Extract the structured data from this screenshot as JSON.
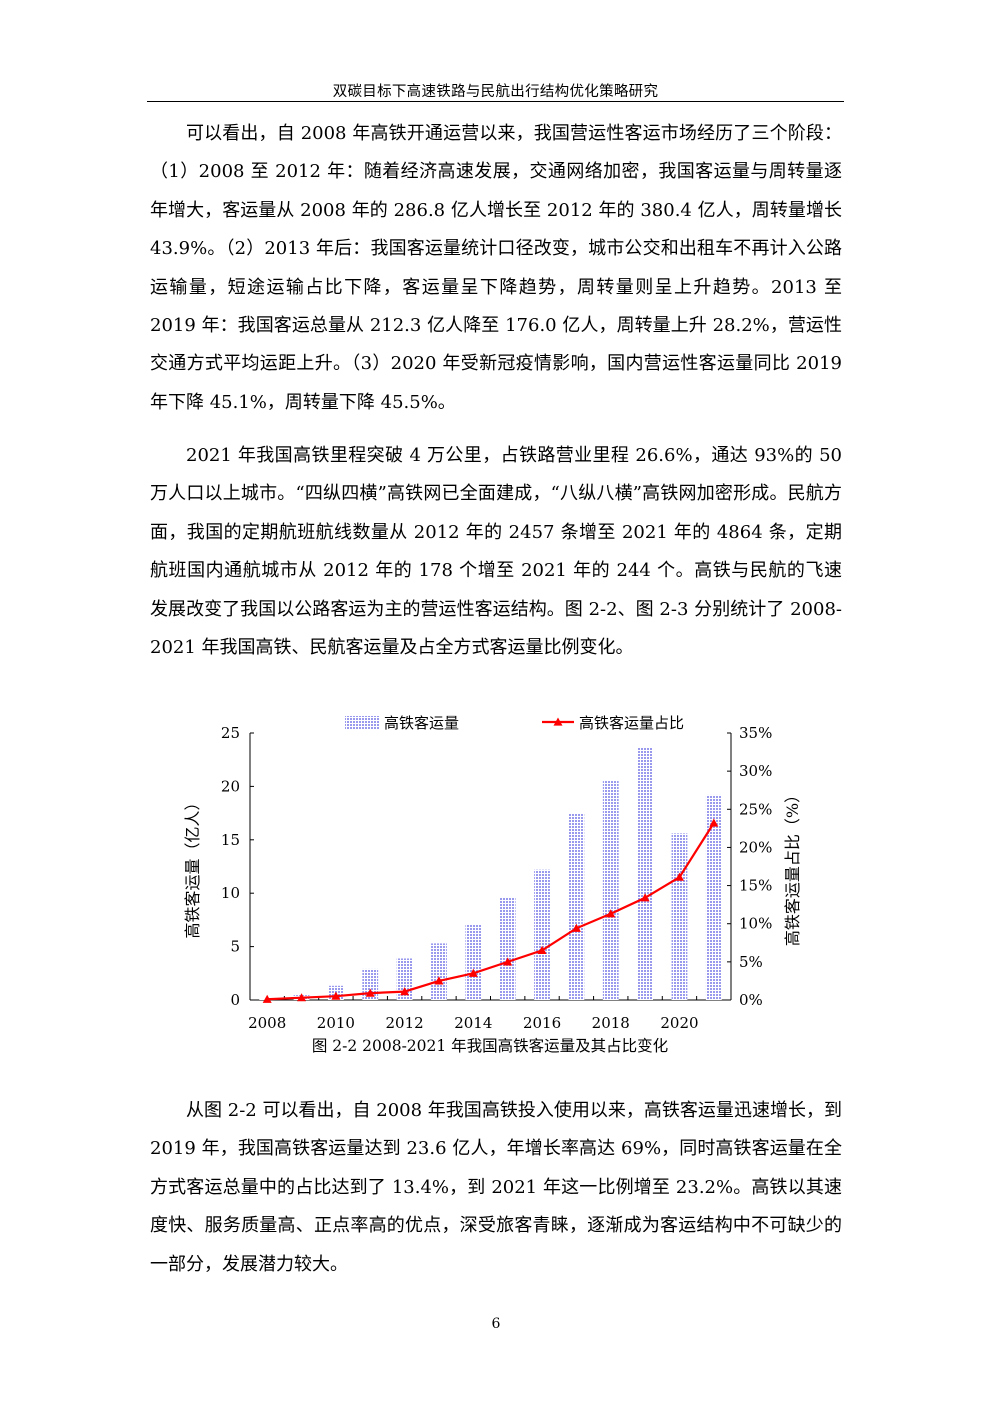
{
  "header": {
    "title": "双碳目标下高速铁路与民航出行结构优化策略研究"
  },
  "body": {
    "p1": "可以看出，自 2008 年高铁开通运营以来，我国营运性客运市场经历了三个阶段：（1）2008 至 2012 年：随着经济高速发展，交通网络加密，我国客运量与周转量逐年增大，客运量从 2008 年的 286.8 亿人增长至 2012 年的 380.4 亿人，周转量增长 43.9%。（2）2013 年后：我国客运量统计口径改变，城市公交和出租车不再计入公路运输量，短途运输占比下降，客运量呈下降趋势，周转量则呈上升趋势。2013 至 2019 年：我国客运总量从 212.3 亿人降至 176.0 亿人，周转量上升 28.2%，营运性交通方式平均运距上升。（3）2020 年受新冠疫情影响，国内营运性客运量同比 2019 年下降 45.1%，周转量下降 45.5%。",
    "p2": "2021 年我国高铁里程突破 4 万公里，占铁路营业里程 26.6%，通达 93%的 50 万人口以上城市。“四纵四横”高铁网已全面建成，“八纵八横”高铁网加密形成。民航方面，我国的定期航班航线数量从 2012 年的 2457 条增至 2021 年的 4864 条，定期航班国内通航城市从 2012 年的 178 个增至 2021 年的 244 个。高铁与民航的飞速发展改变了我国以公路客运为主的营运性客运结构。图 2-2、图 2-3 分别统计了 2008-2021 年我国高铁、民航客运量及占全方式客运量比例变化。",
    "p3": "从图 2-2 可以看出，自 2008 年我国高铁投入使用以来，高铁客运量迅速增长，到 2019 年，我国高铁客运量达到 23.6 亿人，年增长率高达 69%，同时高铁客运量在全方式客运总量中的占比达到了 13.4%，到 2021 年这一比例增至 23.2%。高铁以其速度快、服务质量高、正点率高的优点，深受旅客青睐，逐渐成为客运结构中不可缺少的一部分，发展潜力较大。"
  },
  "figure": {
    "caption": "图 2-2 2008-2021 年我国高铁客运量及其占比变化"
  },
  "chart_data": {
    "type": "bar+line",
    "categories": [
      2008,
      2009,
      2010,
      2011,
      2012,
      2013,
      2014,
      2015,
      2016,
      2017,
      2018,
      2019,
      2020,
      2021
    ],
    "series": [
      {
        "name": "高铁客运量",
        "type": "bar",
        "axis": "left",
        "values": [
          0.07,
          0.46,
          1.33,
          2.91,
          3.89,
          5.3,
          7.03,
          9.61,
          12.2,
          17.5,
          20.5,
          23.6,
          15.6,
          19.2
        ],
        "color": "#9999ee"
      },
      {
        "name": "高铁客运量占比",
        "type": "line",
        "axis": "right",
        "values": [
          0.1,
          0.3,
          0.5,
          0.9,
          1.1,
          2.5,
          3.5,
          5.0,
          6.5,
          9.4,
          11.3,
          13.4,
          16.1,
          23.2
        ],
        "color": "#ff0000"
      }
    ],
    "ylabel": "高铁客运量（亿人）",
    "ylabel_right": "高铁客运量占比（%）",
    "ylim": [
      0,
      25
    ],
    "ylim_right": [
      0,
      35
    ],
    "yticks": [
      "0",
      "5",
      "10",
      "15",
      "20",
      "25"
    ],
    "yticks_right": [
      "0%",
      "5%",
      "10%",
      "15%",
      "20%",
      "25%",
      "30%",
      "35%"
    ],
    "xticks": [
      "2008",
      "2010",
      "2012",
      "2014",
      "2016",
      "2018",
      "2020"
    ],
    "legend": [
      "高铁客运量",
      "高铁客运量占比"
    ],
    "legend_position": "top",
    "grid": false
  },
  "footer": {
    "page_number": "6"
  }
}
